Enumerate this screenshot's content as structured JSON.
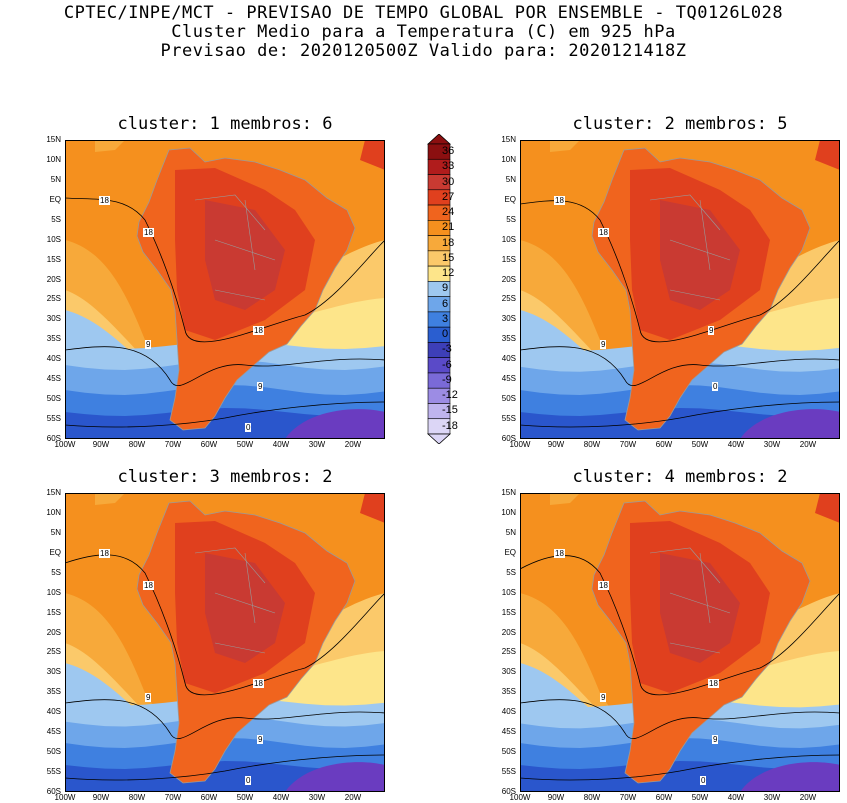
{
  "header": {
    "line1": "CPTEC/INPE/MCT - PREVISAO DE TEMPO GLOBAL POR ENSEMBLE - TQ0126L028",
    "line2": "Cluster Medio para a Temperatura (C) em 925 hPa",
    "line3": "Previsao de: 2020120500Z   Valido para: 2020121418Z"
  },
  "panels": [
    {
      "title": "cluster: 1  membros: 6",
      "contour_labels": [
        "18",
        "18",
        "18",
        "9",
        "9",
        "0"
      ]
    },
    {
      "title": "cluster: 2  membros: 5",
      "contour_labels": [
        "18",
        "18",
        "9",
        "9",
        "0"
      ]
    },
    {
      "title": "cluster: 3  membros: 2",
      "contour_labels": [
        "18",
        "18",
        "18",
        "9",
        "9",
        "0"
      ]
    },
    {
      "title": "cluster: 4  membros: 2",
      "contour_labels": [
        "18",
        "18",
        "18",
        "9",
        "9",
        "0"
      ]
    }
  ],
  "lat_ticks": [
    "15N",
    "10N",
    "5N",
    "EQ",
    "5S",
    "10S",
    "15S",
    "20S",
    "25S",
    "30S",
    "35S",
    "40S",
    "45S",
    "50S",
    "55S",
    "60S"
  ],
  "lon_ticks": [
    "100W",
    "90W",
    "80W",
    "70W",
    "60W",
    "50W",
    "40W",
    "30W",
    "20W"
  ],
  "colorbar": {
    "labels": [
      "36",
      "33",
      "30",
      "27",
      "24",
      "21",
      "18",
      "15",
      "12",
      "9",
      "6",
      "3",
      "0",
      "-3",
      "-6",
      "-9",
      "-12",
      "-15",
      "-18"
    ],
    "colors": [
      "#8b0f10",
      "#b01c1c",
      "#c93a32",
      "#e0401e",
      "#f0641e",
      "#f5901e",
      "#f7a93a",
      "#fbc96a",
      "#fde58a",
      "#9ec8f0",
      "#6ea6ea",
      "#3f80e0",
      "#2a5ed0",
      "#3d3fb8",
      "#5a4ac8",
      "#7a6ad8",
      "#9c8ce4",
      "#bfb4ee",
      "#dcd6f6"
    ]
  }
}
